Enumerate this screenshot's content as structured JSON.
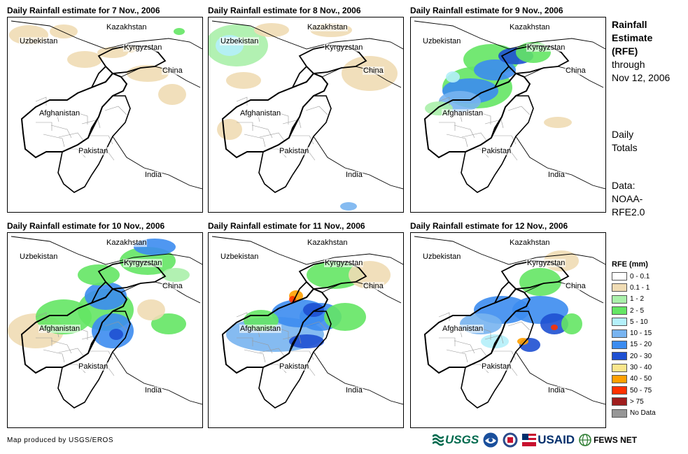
{
  "panels": [
    {
      "title": "Daily Rainfall estimate for 7 Nov., 2006"
    },
    {
      "title": "Daily Rainfall estimate for 8 Nov., 2006"
    },
    {
      "title": "Daily Rainfall estimate for 9 Nov., 2006"
    },
    {
      "title": "Daily Rainfall estimate for 10 Nov., 2006"
    },
    {
      "title": "Daily Rainfall estimate for 11 Nov., 2006"
    },
    {
      "title": "Daily Rainfall estimate for 12 Nov., 2006"
    }
  ],
  "map_labels": {
    "kazakhstan": "Kazakhstan",
    "uzbekistan": "Uzbekistan",
    "kyrgyzstan": "Kyrgyzstan",
    "china": "China",
    "afghanistan": "Afghanistan",
    "pakistan": "Pakistan",
    "india": "India"
  },
  "side": {
    "title_lines": [
      "Rainfall",
      "Estimate",
      "(RFE)"
    ],
    "subtitle_lines": [
      "through",
      "Nov 12, 2006"
    ],
    "period_lines": [
      "Daily",
      "Totals"
    ],
    "source_lines": [
      "Data:",
      "NOAA-",
      "RFE2.0"
    ]
  },
  "legend": {
    "title": "RFE (mm)",
    "items": [
      {
        "label": "0 - 0.1",
        "color": "#ffffff"
      },
      {
        "label": "0.1 - 1",
        "color": "#f0dcb4"
      },
      {
        "label": "1 - 2",
        "color": "#aaf0aa"
      },
      {
        "label": "2 - 5",
        "color": "#64e664"
      },
      {
        "label": "5 - 10",
        "color": "#b4f0fa"
      },
      {
        "label": "10 - 15",
        "color": "#78b4f0"
      },
      {
        "label": "15 - 20",
        "color": "#3c8cf0"
      },
      {
        "label": "20 - 30",
        "color": "#1e50d2"
      },
      {
        "label": "30 - 40",
        "color": "#fae68c"
      },
      {
        "label": "40 - 50",
        "color": "#ffa000"
      },
      {
        "label": "50 - 75",
        "color": "#ff3200"
      },
      {
        "label": "> 75",
        "color": "#a01e1e"
      },
      {
        "label": "No Data",
        "color": "#969696"
      }
    ]
  },
  "footer": {
    "credit": "Map produced by USGS/EROS",
    "logo_usgs": "USGS",
    "logo_usaid": "USAID",
    "logo_fews": "FEWS NET",
    "logo_usgs_icon": "usgs-wave-icon",
    "logo_noaa_icon": "noaa-seal-icon",
    "logo_dhs_icon": "seal-icon",
    "logo_usaid_icon": "usaid-flag-icon",
    "logo_fews_icon": "globe-icon"
  }
}
